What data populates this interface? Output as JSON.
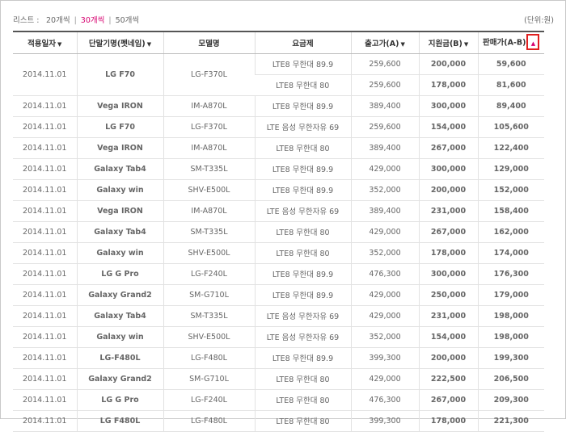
{
  "topbar": {
    "list_label": "리스트 :",
    "page_sizes": [
      "20개씩",
      "30개씩",
      "50개씩"
    ],
    "active_page_size": "30개씩",
    "separator": "|",
    "unit_label": "(단위:원)"
  },
  "table": {
    "columns": [
      {
        "label": "적용일자",
        "sort_icon": "sort-down-arrow"
      },
      {
        "label": "단말기명(펫네임)",
        "sort_icon": "sort-down-arrow"
      },
      {
        "label": "모델명",
        "sort_icon": ""
      },
      {
        "label": "요금제",
        "sort_icon": ""
      },
      {
        "label": "출고가(A)",
        "sort_icon": "sort-down-arrow"
      },
      {
        "label": "지원금(B)",
        "sort_icon": "sort-down-arrow"
      },
      {
        "label": "판매가(A-B)",
        "sort_icon": "sort-up-arrow"
      }
    ],
    "groups": [
      {
        "date": "2014.11.01",
        "device": "LG F70",
        "model": "LG-F370L",
        "rows": [
          {
            "plan": "LTE8 무한대 89.9",
            "price": "259,600",
            "subsidy": "200,000",
            "sale": "59,600"
          },
          {
            "plan": "LTE8 무한대 80",
            "price": "259,600",
            "subsidy": "178,000",
            "sale": "81,600"
          }
        ]
      },
      {
        "date": "2014.11.01",
        "device": "Vega IRON",
        "model": "IM-A870L",
        "rows": [
          {
            "plan": "LTE8 무한대 89.9",
            "price": "389,400",
            "subsidy": "300,000",
            "sale": "89,400"
          }
        ]
      },
      {
        "date": "2014.11.01",
        "device": "LG F70",
        "model": "LG-F370L",
        "rows": [
          {
            "plan": "LTE 음성 무한자유 69",
            "price": "259,600",
            "subsidy": "154,000",
            "sale": "105,600"
          }
        ]
      },
      {
        "date": "2014.11.01",
        "device": "Vega IRON",
        "model": "IM-A870L",
        "rows": [
          {
            "plan": "LTE8 무한대 80",
            "price": "389,400",
            "subsidy": "267,000",
            "sale": "122,400"
          }
        ]
      },
      {
        "date": "2014.11.01",
        "device": "Galaxy Tab4",
        "model": "SM-T335L",
        "rows": [
          {
            "plan": "LTE8 무한대 89.9",
            "price": "429,000",
            "subsidy": "300,000",
            "sale": "129,000"
          }
        ]
      },
      {
        "date": "2014.11.01",
        "device": "Galaxy win",
        "model": "SHV-E500L",
        "rows": [
          {
            "plan": "LTE8 무한대 89.9",
            "price": "352,000",
            "subsidy": "200,000",
            "sale": "152,000"
          }
        ]
      },
      {
        "date": "2014.11.01",
        "device": "Vega IRON",
        "model": "IM-A870L",
        "rows": [
          {
            "plan": "LTE 음성 무한자유 69",
            "price": "389,400",
            "subsidy": "231,000",
            "sale": "158,400"
          }
        ]
      },
      {
        "date": "2014.11.01",
        "device": "Galaxy Tab4",
        "model": "SM-T335L",
        "rows": [
          {
            "plan": "LTE8 무한대 80",
            "price": "429,000",
            "subsidy": "267,000",
            "sale": "162,000"
          }
        ]
      },
      {
        "date": "2014.11.01",
        "device": "Galaxy win",
        "model": "SHV-E500L",
        "rows": [
          {
            "plan": "LTE8 무한대 80",
            "price": "352,000",
            "subsidy": "178,000",
            "sale": "174,000"
          }
        ]
      },
      {
        "date": "2014.11.01",
        "device": "LG G Pro",
        "model": "LG-F240L",
        "rows": [
          {
            "plan": "LTE8 무한대 89.9",
            "price": "476,300",
            "subsidy": "300,000",
            "sale": "176,300"
          }
        ]
      },
      {
        "date": "2014.11.01",
        "device": "Galaxy Grand2",
        "model": "SM-G710L",
        "rows": [
          {
            "plan": "LTE8 무한대 89.9",
            "price": "429,000",
            "subsidy": "250,000",
            "sale": "179,000"
          }
        ]
      },
      {
        "date": "2014.11.01",
        "device": "Galaxy Tab4",
        "model": "SM-T335L",
        "rows": [
          {
            "plan": "LTE 음성 무한자유 69",
            "price": "429,000",
            "subsidy": "231,000",
            "sale": "198,000"
          }
        ]
      },
      {
        "date": "2014.11.01",
        "device": "Galaxy win",
        "model": "SHV-E500L",
        "rows": [
          {
            "plan": "LTE 음성 무한자유 69",
            "price": "352,000",
            "subsidy": "154,000",
            "sale": "198,000"
          }
        ]
      },
      {
        "date": "2014.11.01",
        "device": "LG-F480L",
        "model": "LG-F480L",
        "rows": [
          {
            "plan": "LTE8 무한대 89.9",
            "price": "399,300",
            "subsidy": "200,000",
            "sale": "199,300"
          }
        ]
      },
      {
        "date": "2014.11.01",
        "device": "Galaxy Grand2",
        "model": "SM-G710L",
        "rows": [
          {
            "plan": "LTE8 무한대 80",
            "price": "429,000",
            "subsidy": "222,500",
            "sale": "206,500"
          }
        ]
      },
      {
        "date": "2014.11.01",
        "device": "LG G Pro",
        "model": "LG-F240L",
        "rows": [
          {
            "plan": "LTE8 무한대 80",
            "price": "476,300",
            "subsidy": "267,000",
            "sale": "209,300"
          }
        ]
      },
      {
        "date": "2014.11.01",
        "device": "LG F480L",
        "model": "LG-F480L",
        "rows": [
          {
            "plan": "LTE8 무한대 80",
            "price": "399,300",
            "subsidy": "178,000",
            "sale": "221,300"
          }
        ]
      }
    ]
  },
  "colors": {
    "accent": "#d6006f",
    "highlight_box": "#e02020",
    "header_border": "#555555"
  }
}
